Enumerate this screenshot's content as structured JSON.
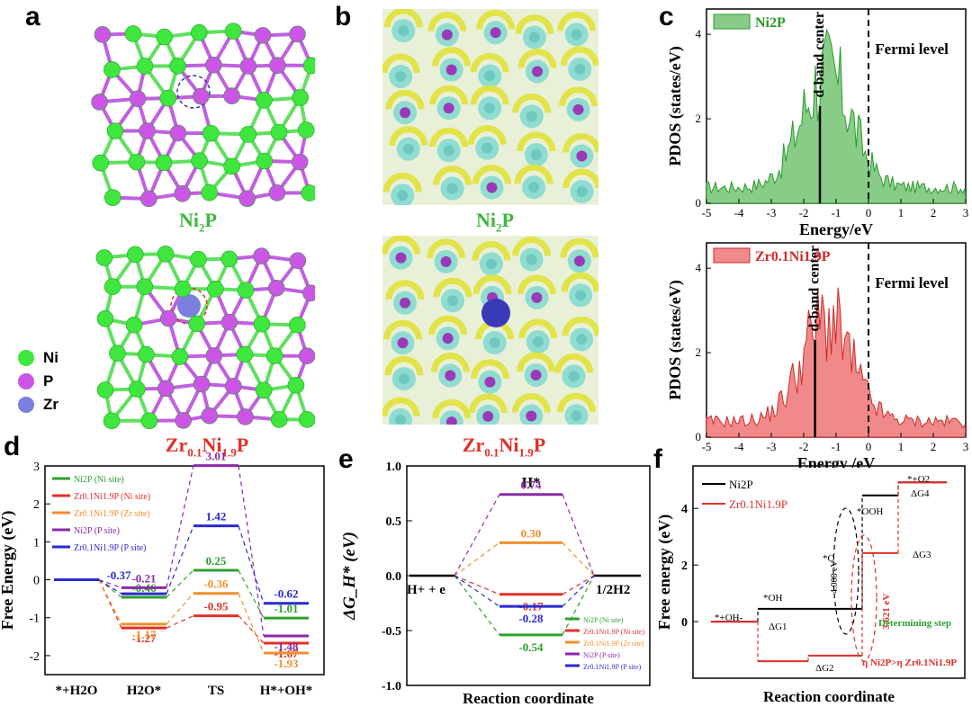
{
  "panels": {
    "a": "a",
    "b": "b",
    "c": "c",
    "d": "d",
    "e": "e",
    "f": "f"
  },
  "structure": {
    "top_caption_main": "Ni",
    "top_caption_sub1": "2",
    "top_caption_tail": "P",
    "bottom_caption_a": "Zr",
    "bottom_caption_sub_a": "0.1",
    "bottom_caption_b": "Ni",
    "bottom_caption_sub_b": "1.9",
    "bottom_caption_c": "P",
    "legend": [
      {
        "label": "Ni",
        "color": "#3ee63e"
      },
      {
        "label": "P",
        "color": "#cc55e8"
      },
      {
        "label": "Zr",
        "color": "#7a7fe0"
      }
    ]
  },
  "pdos": {
    "ylabel": "PDOS (states/eV)",
    "xlabel_top": "Energy/eV",
    "xlabel_bottom": "Energy /eV",
    "xticks": [
      "-5",
      "-4",
      "-3",
      "-2",
      "-1",
      "0",
      "1",
      "2",
      "3"
    ],
    "yticks": [
      "0",
      "2",
      "4"
    ],
    "dband": "d-band center",
    "fermi": "Fermi level",
    "top_legend": "Ni2P",
    "bottom_legend": "Zr0.1Ni1.9P"
  },
  "chart_data": [
    {
      "type": "line",
      "panel": "d",
      "ylabel": "Free Energy (eV)",
      "categories": [
        "*+H2O",
        "H2O*",
        "TS",
        "H*+OH*"
      ],
      "ylim": [
        -2.5,
        3
      ],
      "yticks": [
        "-2",
        "-1",
        "0",
        "1",
        "2",
        "3"
      ],
      "series": [
        {
          "name": "Ni2P (Ni site)",
          "color": "#2ea02e",
          "values": [
            0,
            -0.46,
            0.25,
            -1.01
          ],
          "labels": [
            "",
            "-0.46",
            "0.25",
            "-1.01"
          ]
        },
        {
          "name": "Zr0.1Ni1.9P (Ni site)",
          "color": "#e0302a",
          "values": [
            0,
            -1.27,
            -0.95,
            -1.67
          ],
          "labels": [
            "",
            "-1.27",
            "-0.95",
            "-1.67"
          ]
        },
        {
          "name": "Zr0.1Ni1.9P (Zr site)",
          "color": "#f0902a",
          "values": [
            0,
            -1.17,
            -0.36,
            -1.93
          ],
          "labels": [
            "",
            "-1.17",
            "-0.36",
            "-1.93"
          ]
        },
        {
          "name": "Ni2P (P site)",
          "color": "#8a2aa8",
          "values": [
            0,
            -0.21,
            3.01,
            -1.48
          ],
          "labels": [
            "",
            "-0.21",
            "3.01",
            "-1.48"
          ]
        },
        {
          "name": "Zr0.1Ni1.9P (P site)",
          "color": "#2a2ad0",
          "values": [
            0,
            -0.37,
            1.42,
            -0.62
          ],
          "labels": [
            "",
            "-0.37",
            "1.42",
            "-0.62"
          ]
        }
      ]
    },
    {
      "type": "line",
      "panel": "e",
      "ylabel": "ΔG_H* (eV)",
      "xlabel": "Reaction coordinate",
      "categories": [
        "H+ + e",
        "H*",
        "1/2H2"
      ],
      "ylim": [
        -1.0,
        1.0
      ],
      "yticks": [
        "-1.0",
        "-0.5",
        "0.0",
        "0.5",
        "1.0"
      ],
      "peak_label": "H*",
      "series": [
        {
          "name": "Ni2P (Ni site)",
          "color": "#2ea02e",
          "values": [
            0,
            -0.54,
            0
          ],
          "label": "-0.54"
        },
        {
          "name": "Zr0.1Ni1.9P (Ni site)",
          "color": "#e0302a",
          "values": [
            0,
            -0.17,
            0
          ],
          "label": "-0.17"
        },
        {
          "name": "Zr0.1Ni1.9P (Zr site)",
          "color": "#f0902a",
          "values": [
            0,
            0.3,
            0
          ],
          "label": "0.30"
        },
        {
          "name": "Ni2P (P site)",
          "color": "#8a2aa8",
          "values": [
            0,
            0.74,
            0
          ],
          "label": "0.74"
        },
        {
          "name": "Zr0.1Ni1.9P (P site)",
          "color": "#2a2ad0",
          "values": [
            0,
            -0.28,
            0
          ],
          "label": "-0.28"
        }
      ]
    },
    {
      "type": "line",
      "panel": "f",
      "ylabel": "Free energy (eV)",
      "xlabel": "Reaction coordinate",
      "ylim": [
        -2,
        5.5
      ],
      "yticks": [
        "0",
        "2",
        "4"
      ],
      "steps": [
        "*+OH-",
        "*OH",
        "*O",
        "*OOH",
        "*+O2"
      ],
      "series": [
        {
          "name": "Ni2P",
          "color": "#000000",
          "values": [
            0,
            0.45,
            0.45,
            4.46,
            4.92
          ]
        },
        {
          "name": "Zr0.1Ni1.9P",
          "color": "#e0302a",
          "values": [
            0,
            -1.4,
            -1.2,
            2.42,
            4.92
          ]
        }
      ],
      "annotations": {
        "gap_black": "4.008 eV",
        "gap_red": "3.621 eV",
        "dg1": "ΔG1",
        "dg2": "ΔG2",
        "dg3": "ΔG3",
        "dg4": "ΔG4",
        "determining": "Determining step",
        "eta": "η Ni2P>η Zr0.1Ni1.9P"
      }
    }
  ]
}
